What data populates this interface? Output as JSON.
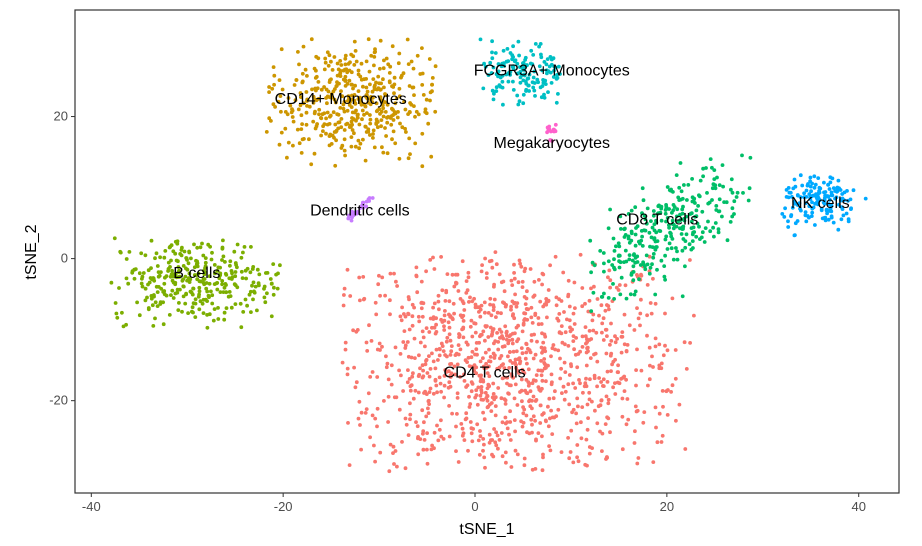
{
  "chart_data": {
    "type": "scatter",
    "title": "",
    "xlabel": "tSNE_1",
    "ylabel": "tSNE_2",
    "xlim": [
      -41.7,
      44.2
    ],
    "ylim": [
      -33,
      35
    ],
    "xticks": [
      -40,
      -20,
      0,
      20,
      40
    ],
    "yticks": [
      -20,
      0,
      20
    ],
    "grid": false,
    "clusters": [
      {
        "name": "CD4 T cells",
        "color": "#F8766D",
        "label_at": [
          1,
          -16
        ],
        "center": [
          3,
          -15
        ],
        "spread": [
          9.5,
          8.5
        ],
        "count": 1100,
        "xr": [
          -14,
          23
        ],
        "yr": [
          -30,
          1
        ]
      },
      {
        "name": "CD14+ Monocytes",
        "color": "#CD9600",
        "label_at": [
          -14,
          22.5
        ],
        "center": [
          -13,
          22
        ],
        "spread": [
          4.5,
          4.2
        ],
        "count": 450,
        "xr": [
          -22,
          -4
        ],
        "yr": [
          13,
          31
        ]
      },
      {
        "name": "B cells",
        "color": "#7CAE00",
        "label_at": [
          -29,
          -2
        ],
        "center": [
          -29,
          -3
        ],
        "spread": [
          4.5,
          3
        ],
        "count": 330,
        "xr": [
          -38,
          -20
        ],
        "yr": [
          -10,
          3
        ]
      },
      {
        "name": "CD8 T cells",
        "color": "#00BE67",
        "label_at": [
          19,
          5.5
        ],
        "center": [
          20,
          4
        ],
        "spread": [
          4,
          5
        ],
        "count": 300,
        "xr": [
          12,
          29
        ],
        "yr": [
          -8,
          15
        ]
      },
      {
        "name": "FCGR3A+ Monocytes",
        "color": "#00BFC4",
        "label_at": [
          8,
          26.5
        ],
        "center": [
          5,
          26
        ],
        "spread": [
          2.2,
          2.2
        ],
        "count": 150,
        "xr": [
          0,
          10
        ],
        "yr": [
          21,
          31
        ]
      },
      {
        "name": "NK cells",
        "color": "#00A9FF",
        "label_at": [
          36,
          7.8
        ],
        "center": [
          36,
          8
        ],
        "spread": [
          2,
          2
        ],
        "count": 160,
        "xr": [
          32,
          41
        ],
        "yr": [
          3,
          12
        ]
      },
      {
        "name": "Dendritic cells",
        "color": "#C77CFF",
        "label_at": [
          -12,
          6.8
        ],
        "center": [
          -12,
          7
        ],
        "spread": [
          0.8,
          1.2
        ],
        "count": 30,
        "xr": [
          -13.5,
          -10.5
        ],
        "yr": [
          5,
          9
        ]
      },
      {
        "name": "Megakaryocytes",
        "color": "#FF61CC",
        "label_at": [
          8,
          16.3
        ],
        "center": [
          8,
          17.5
        ],
        "spread": [
          0.3,
          1
        ],
        "count": 14,
        "xr": [
          7.5,
          8.5
        ],
        "yr": [
          15,
          20
        ]
      }
    ]
  }
}
